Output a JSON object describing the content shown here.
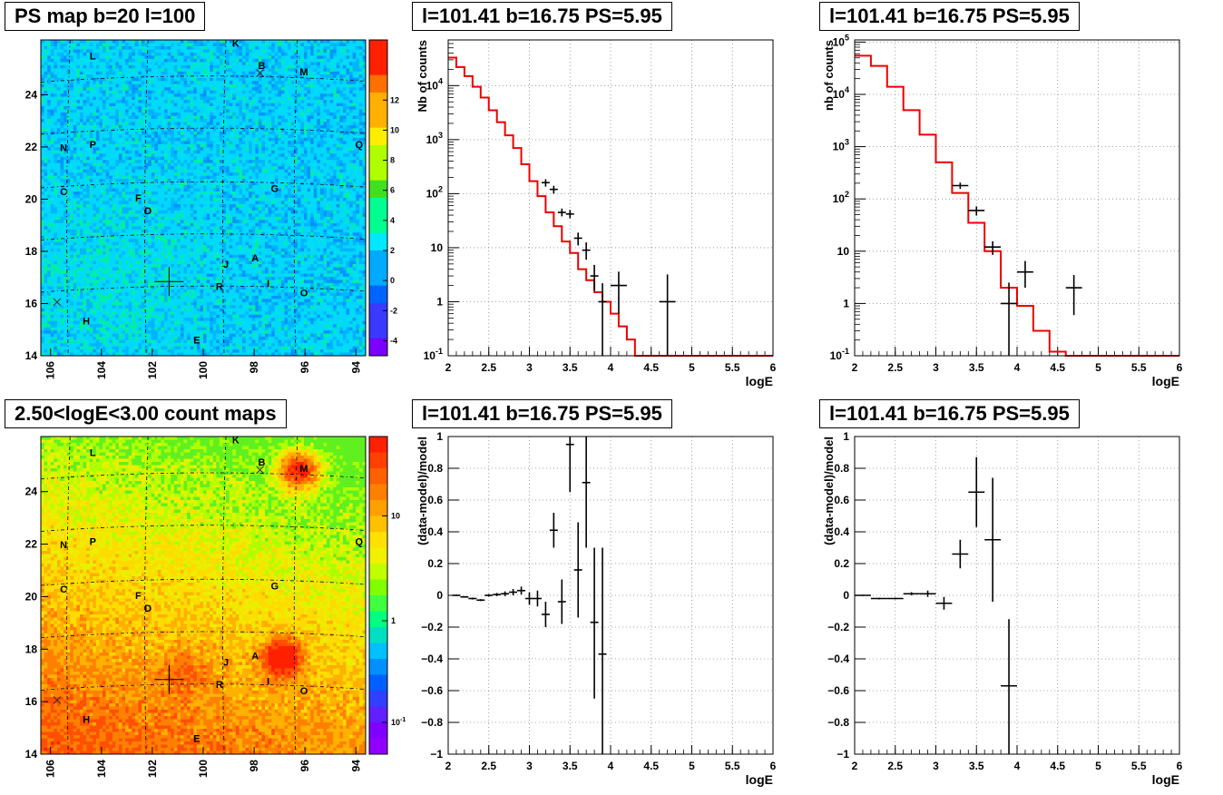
{
  "chart_data": [
    {
      "type": "heatmap",
      "title": "PS map b=20 l=100",
      "x_ticks": [
        "106",
        "104",
        "102",
        "100",
        "98",
        "96",
        "94"
      ],
      "y_ticks": [
        "14",
        "16",
        "18",
        "20",
        "22",
        "24"
      ],
      "colorbar_ticks": [
        "12",
        "10",
        "8",
        "6",
        "4",
        "2",
        "0",
        "-2",
        "-4"
      ],
      "source_labels": [
        "K",
        "L",
        "B",
        "M",
        "N",
        "P",
        "Q",
        "C",
        "F",
        "G",
        "D",
        "J",
        "A",
        "R",
        "I",
        "O",
        "H",
        "E"
      ],
      "colors": [
        "#7a00ff",
        "#3a3aff",
        "#0064ff",
        "#00aaff",
        "#00e8ff",
        "#00ff90",
        "#40e020",
        "#b0ff00",
        "#ffee00",
        "#ffb000",
        "#ff7000",
        "#ff2000"
      ]
    },
    {
      "type": "heatmap",
      "title": "2.50<logE<3.00 count maps",
      "x_ticks": [
        "106",
        "104",
        "102",
        "100",
        "98",
        "96",
        "94"
      ],
      "y_ticks": [
        "14",
        "16",
        "18",
        "20",
        "22",
        "24"
      ],
      "colorbar_ticks": [
        "10",
        "1"
      ],
      "colorbar_tick_base": "10",
      "colorbar_tick_exp": "-1",
      "source_labels": [
        "K",
        "L",
        "B",
        "M",
        "N",
        "P",
        "Q",
        "C",
        "F",
        "G",
        "D",
        "J",
        "A",
        "R",
        "I",
        "O",
        "H",
        "E"
      ]
    },
    {
      "type": "line",
      "title": "l=101.41 b=16.75 PS=5.95",
      "xlabel": "logE",
      "ylabel": "Nb of counts",
      "ylog": true,
      "xlim": [
        2,
        6
      ],
      "ylim": [
        0.1,
        70000
      ],
      "x_ticks": [
        "2",
        "2.5",
        "3",
        "3.5",
        "4",
        "4.5",
        "5",
        "5.5",
        "6"
      ],
      "y_tick_labels": [
        "1",
        "10",
        "10",
        "10",
        "10",
        "10"
      ],
      "y_tick_exps": [
        "",
        "",
        "2",
        "3",
        "4",
        "-1"
      ],
      "model_step": {
        "edges": [
          2,
          2.1,
          2.2,
          2.3,
          2.4,
          2.5,
          2.6,
          2.7,
          2.8,
          2.9,
          3.0,
          3.1,
          3.2,
          3.3,
          3.4,
          3.5,
          3.6,
          3.7,
          3.8,
          3.9,
          4.0,
          4.1,
          4.2,
          4.3,
          6.0
        ],
        "values": [
          33000,
          22000,
          15000,
          9500,
          6000,
          3500,
          2100,
          1200,
          700,
          350,
          170,
          90,
          45,
          25,
          13,
          8,
          4,
          2.5,
          1.5,
          1,
          0.6,
          0.35,
          0.2,
          0.1
        ]
      },
      "points": [
        {
          "x": 3.2,
          "y": 160,
          "xerr": 0.05,
          "ylo": 135,
          "yhi": 185
        },
        {
          "x": 3.3,
          "y": 120,
          "xerr": 0.05,
          "ylo": 100,
          "yhi": 140
        },
        {
          "x": 3.4,
          "y": 45,
          "xerr": 0.05,
          "ylo": 38,
          "yhi": 53
        },
        {
          "x": 3.5,
          "y": 42,
          "xerr": 0.05,
          "ylo": 35,
          "yhi": 50
        },
        {
          "x": 3.6,
          "y": 15,
          "xerr": 0.05,
          "ylo": 11,
          "yhi": 19
        },
        {
          "x": 3.7,
          "y": 9,
          "xerr": 0.05,
          "ylo": 6,
          "yhi": 12.5
        },
        {
          "x": 3.8,
          "y": 3,
          "xerr": 0.05,
          "ylo": 1.6,
          "yhi": 4.8
        },
        {
          "x": 3.9,
          "y": 1,
          "xerr": 0.05,
          "ylo": 0.1,
          "yhi": 2.2
        },
        {
          "x": 4.1,
          "y": 2,
          "xerr": 0.1,
          "ylo": 0.6,
          "yhi": 3.6
        },
        {
          "x": 4.7,
          "y": 1,
          "xerr": 0.1,
          "ylo": 0.1,
          "yhi": 3.2
        }
      ]
    },
    {
      "type": "line",
      "title": "l=101.41 b=16.75 PS=5.95",
      "xlabel": "logE",
      "ylabel": "nb of counts",
      "ylog": true,
      "xlim": [
        2,
        6
      ],
      "ylim": [
        0.1,
        110000
      ],
      "x_ticks": [
        "2",
        "2.5",
        "3",
        "3.5",
        "4",
        "4.5",
        "5",
        "5.5",
        "6"
      ],
      "y_tick_labels": [
        "1",
        "10",
        "10",
        "10",
        "10",
        "10",
        "10"
      ],
      "y_tick_exps": [
        "",
        "",
        "2",
        "3",
        "4",
        "5",
        "-1"
      ],
      "model_step": {
        "edges": [
          2,
          2.2,
          2.4,
          2.6,
          2.8,
          3.0,
          3.2,
          3.4,
          3.6,
          3.8,
          4.0,
          4.2,
          4.4,
          4.6,
          6.0
        ],
        "values": [
          55000,
          35000,
          14000,
          5000,
          1700,
          500,
          130,
          35,
          10,
          2,
          0.9,
          0.3,
          0.12,
          0.1
        ]
      },
      "points": [
        {
          "x": 3.3,
          "y": 180,
          "xerr": 0.1,
          "ylo": 155,
          "yhi": 205
        },
        {
          "x": 3.5,
          "y": 60,
          "xerr": 0.1,
          "ylo": 48,
          "yhi": 72
        },
        {
          "x": 3.7,
          "y": 12,
          "xerr": 0.1,
          "ylo": 8.5,
          "yhi": 15.5
        },
        {
          "x": 3.9,
          "y": 1,
          "xerr": 0.1,
          "ylo": 0.1,
          "yhi": 2.5
        },
        {
          "x": 4.1,
          "y": 4,
          "xerr": 0.1,
          "ylo": 2,
          "yhi": 6.5
        },
        {
          "x": 4.7,
          "y": 2,
          "xerr": 0.1,
          "ylo": 0.6,
          "yhi": 3.5
        }
      ]
    },
    {
      "type": "scatter",
      "title": "l=101.41 b=16.75 PS=5.95",
      "xlabel": "logE",
      "ylabel": "(data-model)/model",
      "xlim": [
        2,
        6
      ],
      "ylim": [
        -1,
        1
      ],
      "x_ticks": [
        "2",
        "2.5",
        "3",
        "3.5",
        "4",
        "4.5",
        "5",
        "5.5",
        "6"
      ],
      "y_ticks": [
        "-1",
        "-0.8",
        "-0.6",
        "-0.4",
        "-0.2",
        "0",
        "0.2",
        "0.4",
        "0.6",
        "0.8",
        "1"
      ],
      "points": [
        {
          "x": 2.1,
          "y": 0,
          "xerr": 0.05,
          "ylo": -0.004,
          "yhi": 0.004
        },
        {
          "x": 2.2,
          "y": -0.01,
          "xerr": 0.05,
          "ylo": -0.015,
          "yhi": -0.005
        },
        {
          "x": 2.3,
          "y": -0.02,
          "xerr": 0.05,
          "ylo": -0.026,
          "yhi": -0.014
        },
        {
          "x": 2.4,
          "y": -0.03,
          "xerr": 0.05,
          "ylo": -0.036,
          "yhi": -0.024
        },
        {
          "x": 2.5,
          "y": 0.0,
          "xerr": 0.05,
          "ylo": -0.008,
          "yhi": 0.008
        },
        {
          "x": 2.6,
          "y": 0.005,
          "xerr": 0.05,
          "ylo": -0.005,
          "yhi": 0.015
        },
        {
          "x": 2.7,
          "y": 0.01,
          "xerr": 0.05,
          "ylo": -0.005,
          "yhi": 0.025
        },
        {
          "x": 2.8,
          "y": 0.02,
          "xerr": 0.05,
          "ylo": 0.0,
          "yhi": 0.04
        },
        {
          "x": 2.9,
          "y": 0.03,
          "xerr": 0.05,
          "ylo": 0.005,
          "yhi": 0.055
        },
        {
          "x": 3.0,
          "y": -0.02,
          "xerr": 0.05,
          "ylo": -0.06,
          "yhi": 0.02
        },
        {
          "x": 3.1,
          "y": -0.02,
          "xerr": 0.05,
          "ylo": -0.07,
          "yhi": 0.03
        },
        {
          "x": 3.2,
          "y": -0.12,
          "xerr": 0.05,
          "ylo": -0.2,
          "yhi": -0.04
        },
        {
          "x": 3.3,
          "y": 0.41,
          "xerr": 0.05,
          "ylo": 0.3,
          "yhi": 0.52
        },
        {
          "x": 3.4,
          "y": -0.04,
          "xerr": 0.05,
          "ylo": -0.18,
          "yhi": 0.1
        },
        {
          "x": 3.5,
          "y": 0.95,
          "xerr": 0.05,
          "ylo": 0.65,
          "yhi": 1.0
        },
        {
          "x": 3.6,
          "y": 0.16,
          "xerr": 0.05,
          "ylo": -0.14,
          "yhi": 0.46
        },
        {
          "x": 3.7,
          "y": 0.71,
          "xerr": 0.05,
          "ylo": 0.3,
          "yhi": 1.0
        },
        {
          "x": 3.8,
          "y": -0.17,
          "xerr": 0.05,
          "ylo": -0.65,
          "yhi": 0.3
        },
        {
          "x": 3.9,
          "y": -0.37,
          "xerr": 0.05,
          "ylo": -1.0,
          "yhi": 0.3
        }
      ]
    },
    {
      "type": "scatter",
      "title": "l=101.41 b=16.75 PS=5.95",
      "xlabel": "logE",
      "ylabel": "(data-model)/model",
      "xlim": [
        2,
        6
      ],
      "ylim": [
        -1,
        1
      ],
      "x_ticks": [
        "2",
        "2.5",
        "3",
        "3.5",
        "4",
        "4.5",
        "5",
        "5.5",
        "6"
      ],
      "y_ticks": [
        "-1",
        "-0.8",
        "-0.6",
        "-0.4",
        "-0.2",
        "0",
        "0.2",
        "0.4",
        "0.6",
        "0.8",
        "1"
      ],
      "points": [
        {
          "x": 2.1,
          "y": 0,
          "xerr": 0.1,
          "ylo": -0.004,
          "yhi": 0.004
        },
        {
          "x": 2.3,
          "y": -0.02,
          "xerr": 0.1,
          "ylo": -0.025,
          "yhi": -0.015
        },
        {
          "x": 2.5,
          "y": -0.02,
          "xerr": 0.1,
          "ylo": -0.025,
          "yhi": -0.015
        },
        {
          "x": 2.7,
          "y": 0.01,
          "xerr": 0.1,
          "ylo": 0.0,
          "yhi": 0.02
        },
        {
          "x": 2.9,
          "y": 0.01,
          "xerr": 0.1,
          "ylo": -0.01,
          "yhi": 0.03
        },
        {
          "x": 3.1,
          "y": -0.05,
          "xerr": 0.1,
          "ylo": -0.09,
          "yhi": -0.01
        },
        {
          "x": 3.3,
          "y": 0.26,
          "xerr": 0.1,
          "ylo": 0.17,
          "yhi": 0.35
        },
        {
          "x": 3.5,
          "y": 0.65,
          "xerr": 0.1,
          "ylo": 0.43,
          "yhi": 0.87
        },
        {
          "x": 3.7,
          "y": 0.35,
          "xerr": 0.1,
          "ylo": -0.04,
          "yhi": 0.74
        },
        {
          "x": 3.9,
          "y": -0.57,
          "xerr": 0.1,
          "ylo": -1.0,
          "yhi": -0.15
        }
      ]
    }
  ]
}
